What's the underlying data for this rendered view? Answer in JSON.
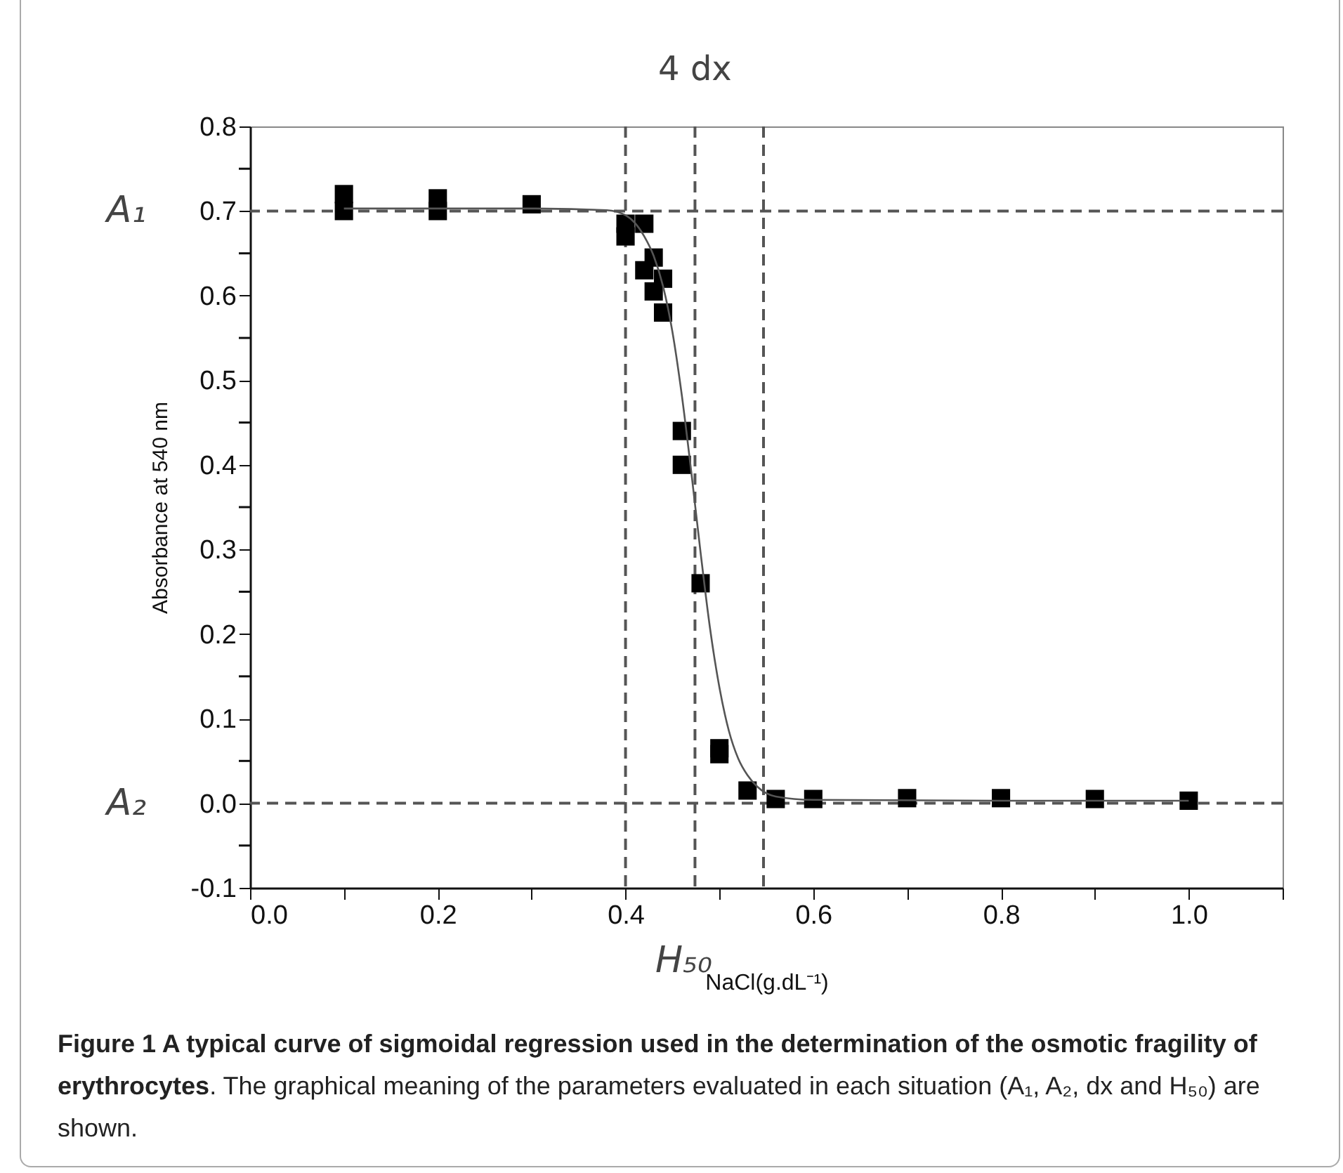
{
  "chart_data": {
    "type": "scatter",
    "xlabel": "NaCl(g.dL⁻¹)",
    "ylabel": "Absorbance at 540 nm",
    "annotations": [
      {
        "text": "4 dx",
        "x": 0.474,
        "y": 0.8
      },
      "Figure 1 A typical curve of sigmoidal regression used in the determination of the osmotic fragility of erythrocytes",
      ". The graphical meaning of the parameters evaluated in each situation (A₁, A₂, dx and H₅₀) are shown."
    ],
    "xlim": [
      0,
      1.1
    ],
    "ylim": [
      -0.1,
      0.8
    ],
    "xticks": [
      {
        "value": 0,
        "label": "0.0"
      },
      {
        "value": 0.1,
        "label": null
      },
      0.2,
      {
        "value": 0.3,
        "label": null
      },
      0.4,
      {
        "value": 0.5,
        "label": null
      },
      0.6,
      {
        "value": 0.7,
        "label": null
      },
      0.8,
      {
        "value": 0.9,
        "label": null
      },
      {
        "value": 1,
        "label": "1.0"
      },
      {
        "value": 1.1,
        "label": null
      }
    ],
    "yticks": [
      -0.1,
      {
        "value": -0.05,
        "label": null
      },
      {
        "value": 0,
        "label": "0.0"
      },
      {
        "value": 0.05,
        "label": null
      },
      0.1,
      {
        "value": 0.15,
        "label": null
      },
      0.2,
      {
        "value": 0.25,
        "label": null
      },
      0.3,
      {
        "value": 0.35,
        "label": null
      },
      0.4,
      {
        "value": 0.45,
        "label": null
      },
      0.5,
      {
        "value": 0.55,
        "label": null
      },
      0.6,
      {
        "value": 0.65,
        "label": null
      },
      0.7,
      {
        "value": 0.75,
        "label": null
      },
      0.8
    ],
    "grid": false,
    "marker": "square",
    "series": [
      {
        "color": "#000000",
        "x": [
          0.1,
          0.1,
          0.2,
          0.2,
          0.3,
          0.4,
          0.4,
          0.42,
          0.42,
          0.43,
          0.43,
          0.44,
          0.44,
          0.46,
          0.46,
          0.48,
          0.5,
          0.5,
          0.53,
          0.56,
          0.6,
          0.7,
          0.8,
          0.9,
          1.0
        ],
        "values": [
          0.72,
          0.7,
          0.715,
          0.7,
          0.708,
          0.685,
          0.67,
          0.685,
          0.63,
          0.645,
          0.605,
          0.62,
          0.58,
          0.44,
          0.4,
          0.26,
          0.065,
          0.058,
          0.015,
          0.005,
          0.005,
          0.006,
          0.006,
          0.005,
          0.003
        ]
      },
      {
        "type": "line",
        "color": "#555555",
        "marker": "none",
        "line_style": "solid",
        "x": [
          0.1,
          0.2,
          0.3,
          0.38,
          0.4,
          0.42,
          0.43,
          0.44,
          0.45,
          0.46,
          0.47,
          0.48,
          0.49,
          0.5,
          0.51,
          0.52,
          0.53,
          0.54,
          0.56,
          0.6,
          0.8,
          1.0
        ],
        "values": [
          0.703,
          0.703,
          0.703,
          0.701,
          0.695,
          0.67,
          0.647,
          0.611,
          0.557,
          0.482,
          0.392,
          0.296,
          0.207,
          0.137,
          0.086,
          0.053,
          0.033,
          0.02,
          0.008,
          0.004,
          0.003,
          0.003
        ]
      }
    ],
    "ref_lines": [
      {
        "axis": "y",
        "value": 0.7,
        "label": "A₁",
        "color": "#555555",
        "line_style": "dashed"
      },
      {
        "axis": "y",
        "value": 0,
        "label": "A₂",
        "color": "#555555",
        "line_style": "dashed"
      },
      {
        "axis": "x",
        "value": 0.474,
        "label": "H₅₀",
        "color": "#555555",
        "line_style": "dashed"
      },
      {
        "axis": "x",
        "value": 0.4,
        "color": "#555555",
        "line_style": "dashed"
      },
      {
        "axis": "x",
        "value": 0.547,
        "color": "#555555",
        "line_style": "dashed"
      }
    ]
  }
}
